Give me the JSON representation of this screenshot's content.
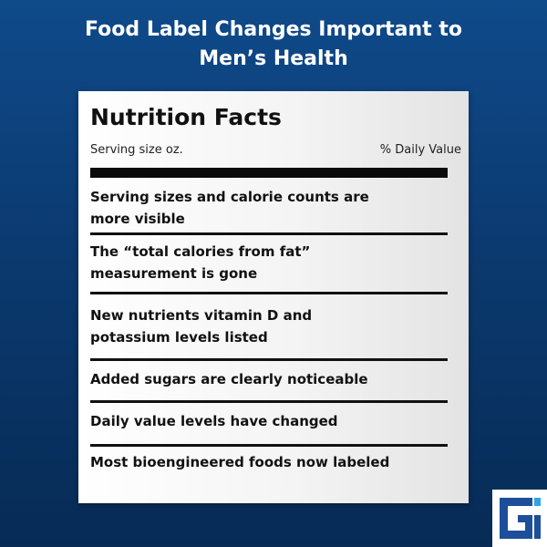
{
  "headline": {
    "line1": "Food Label Changes Important to",
    "line2": "Men’s Health"
  },
  "label": {
    "title": "Nutrition Facts",
    "serving_size": "Serving size oz.",
    "daily_value": "% Daily Value",
    "items": [
      "Serving sizes and calorie counts are more visible",
      "The “total calories from fat” measurement is gone",
      "New nutrients vitamin D and potassium levels listed",
      "Added sugars are clearly noticeable",
      "Daily value levels have changed",
      "Most bioengineered foods now labeled"
    ]
  },
  "colors": {
    "background_top": "#0f4a8a",
    "background_bottom": "#072b55",
    "logo_blue": "#1d4e9a",
    "logo_accent": "#2fa4e0"
  },
  "icons": {
    "logo": "brand-logo-icon"
  }
}
